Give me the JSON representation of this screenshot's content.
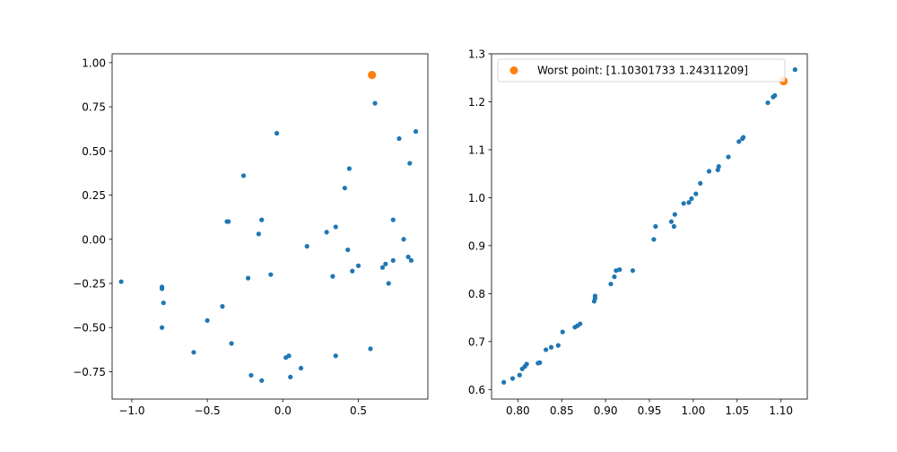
{
  "colors": {
    "series": "#1f77b4",
    "worst": "#ff7f0e"
  },
  "chart_data": [
    {
      "type": "scatter",
      "xlim": [
        -1.13,
        0.96
      ],
      "ylim": [
        -0.905,
        1.05
      ],
      "xticks": [
        -1.0,
        -0.5,
        0.0,
        0.5
      ],
      "xtick_labels": [
        "−1.0",
        "−0.5",
        "0.0",
        "0.5"
      ],
      "yticks": [
        -0.75,
        -0.5,
        -0.25,
        0.0,
        0.25,
        0.5,
        0.75,
        1.0
      ],
      "ytick_labels": [
        "−0.75",
        "−0.50",
        "−0.25",
        "0.00",
        "0.25",
        "0.50",
        "0.75",
        "1.00"
      ],
      "grid": false,
      "series": [
        {
          "x": [
            -1.07,
            -0.8,
            -0.8,
            -0.79,
            -0.8,
            -0.59,
            -0.5,
            -0.4,
            -0.37,
            -0.36,
            -0.34,
            -0.26,
            -0.23,
            -0.21,
            -0.16,
            -0.14,
            -0.14,
            -0.08,
            -0.04,
            0.02,
            0.04,
            0.05,
            0.12,
            0.16,
            0.29,
            0.33,
            0.35,
            0.35,
            0.41,
            0.43,
            0.44,
            0.46,
            0.5,
            0.58,
            0.61,
            0.66,
            0.68,
            0.7,
            0.73,
            0.73,
            0.77,
            0.8,
            0.83,
            0.84,
            0.85,
            0.88
          ],
          "y": [
            -0.24,
            -0.27,
            -0.28,
            -0.36,
            -0.5,
            -0.64,
            -0.46,
            -0.38,
            0.1,
            0.1,
            -0.59,
            0.36,
            -0.22,
            -0.77,
            0.03,
            0.11,
            -0.8,
            -0.2,
            0.6,
            -0.67,
            -0.66,
            -0.78,
            -0.73,
            -0.04,
            0.04,
            -0.21,
            0.07,
            -0.66,
            0.29,
            -0.06,
            0.4,
            -0.18,
            -0.15,
            -0.62,
            0.77,
            -0.16,
            -0.14,
            -0.25,
            -0.12,
            0.11,
            0.57,
            0.0,
            -0.1,
            0.43,
            -0.12,
            0.61
          ]
        },
        {
          "x": [
            0.59
          ],
          "y": [
            0.93
          ]
        }
      ]
    },
    {
      "type": "scatter",
      "xlim": [
        0.77,
        1.13
      ],
      "ylim": [
        0.58,
        1.3
      ],
      "xticks": [
        0.8,
        0.85,
        0.9,
        0.95,
        1.0,
        1.05,
        1.1
      ],
      "xtick_labels": [
        "0.80",
        "0.85",
        "0.90",
        "0.95",
        "1.00",
        "1.05",
        "1.10"
      ],
      "yticks": [
        0.6,
        0.7,
        0.8,
        0.9,
        1.0,
        1.1,
        1.2,
        1.3
      ],
      "ytick_labels": [
        "0.6",
        "0.7",
        "0.8",
        "0.9",
        "1.0",
        "1.1",
        "1.2",
        "1.3"
      ],
      "grid": false,
      "legend": "top-right",
      "series": [
        {
          "x": [
            0.784,
            0.794,
            0.802,
            0.805,
            0.808,
            0.81,
            0.823,
            0.825,
            0.832,
            0.838,
            0.846,
            0.851,
            0.865,
            0.868,
            0.871,
            0.887,
            0.888,
            0.888,
            0.906,
            0.91,
            0.912,
            0.916,
            0.931,
            0.955,
            0.957,
            0.975,
            0.978,
            0.979,
            0.989,
            0.995,
            0.998,
            1.003,
            1.008,
            1.018,
            1.028,
            1.029,
            1.04,
            1.052,
            1.056,
            1.057,
            1.085,
            1.091,
            1.093,
            1.116
          ],
          "y": [
            0.615,
            0.623,
            0.63,
            0.643,
            0.648,
            0.653,
            0.655,
            0.656,
            0.683,
            0.688,
            0.692,
            0.72,
            0.73,
            0.733,
            0.737,
            0.784,
            0.79,
            0.795,
            0.82,
            0.835,
            0.848,
            0.85,
            0.848,
            0.913,
            0.94,
            0.95,
            0.94,
            0.965,
            0.988,
            0.99,
            0.998,
            1.008,
            1.03,
            1.055,
            1.058,
            1.065,
            1.085,
            1.117,
            1.123,
            1.126,
            1.198,
            1.21,
            1.213,
            1.267
          ]
        },
        {
          "name": "Worst point: [1.10301733 1.24311209]",
          "x": [
            1.103
          ],
          "y": [
            1.243
          ]
        }
      ]
    }
  ]
}
